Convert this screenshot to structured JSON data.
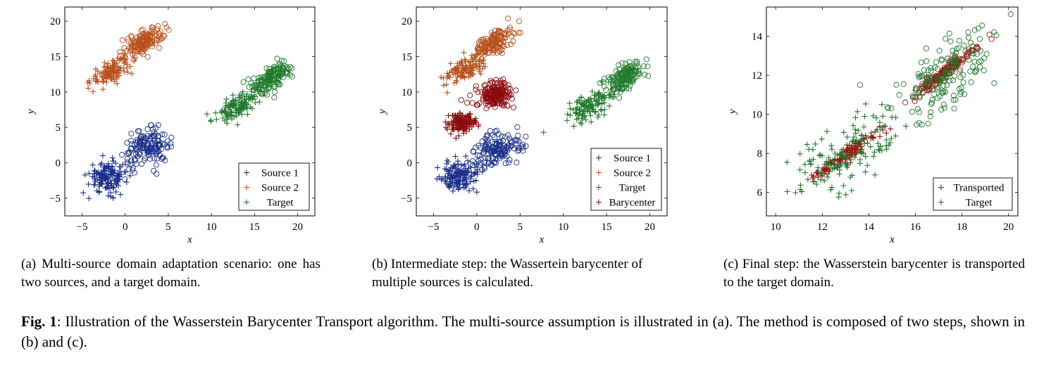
{
  "colors": {
    "source1": "#1a2f8a",
    "source2": "#b8501c",
    "target": "#1f7a2c",
    "barycenter": "#8b0a0a",
    "transported": "#9e1010"
  },
  "chart_data": [
    {
      "type": "scatter",
      "panel": "a",
      "xlabel": "x",
      "ylabel": "y",
      "xlim": [
        -7,
        22
      ],
      "ylim": [
        -7.5,
        22
      ],
      "xticks": [
        -5,
        0,
        5,
        10,
        15,
        20
      ],
      "yticks": [
        -5,
        0,
        5,
        10,
        15,
        20
      ],
      "legend_position": "bottom-right",
      "series": [
        {
          "name": "Source 1",
          "color": "#1a2f8a",
          "clusters": [
            {
              "marker": "plus",
              "cx": -2,
              "cy": -2,
              "sx": 1.1,
              "sy": 1.1,
              "rho": 0.0,
              "n": 150
            },
            {
              "marker": "circle",
              "cx": 2.5,
              "cy": 2,
              "sx": 1.3,
              "sy": 1.3,
              "rho": 0.3,
              "n": 150
            }
          ]
        },
        {
          "name": "Source 2",
          "color": "#b8501c",
          "clusters": [
            {
              "marker": "plus",
              "cx": -1.5,
              "cy": 13,
              "sx": 1.2,
              "sy": 1.0,
              "rho": 0.6,
              "n": 120
            },
            {
              "marker": "circle",
              "cx": 2,
              "cy": 17,
              "sx": 1.2,
              "sy": 1.0,
              "rho": 0.6,
              "n": 150
            }
          ]
        },
        {
          "name": "Target",
          "color": "#1f7a2c",
          "clusters": [
            {
              "marker": "plus",
              "cx": 13,
              "cy": 8,
              "sx": 1.2,
              "sy": 1.1,
              "rho": 0.6,
              "n": 120
            },
            {
              "marker": "circle",
              "cx": 17,
              "cy": 12,
              "sx": 1.1,
              "sy": 1.1,
              "rho": 0.6,
              "n": 150
            }
          ]
        }
      ]
    },
    {
      "type": "scatter",
      "panel": "b",
      "xlabel": "x",
      "ylabel": "y",
      "xlim": [
        -7,
        22
      ],
      "ylim": [
        -7.5,
        22
      ],
      "xticks": [
        -5,
        0,
        5,
        10,
        15,
        20
      ],
      "yticks": [
        -5,
        0,
        5,
        10,
        15,
        20
      ],
      "legend_position": "bottom-right",
      "series": [
        {
          "name": "Source 1",
          "color": "#1a2f8a",
          "clusters": [
            {
              "marker": "plus",
              "cx": -2,
              "cy": -2,
              "sx": 1.1,
              "sy": 1.1,
              "rho": 0.0,
              "n": 150
            },
            {
              "marker": "circle",
              "cx": 2.5,
              "cy": 2,
              "sx": 1.3,
              "sy": 1.3,
              "rho": 0.3,
              "n": 150
            }
          ]
        },
        {
          "name": "Source 2",
          "color": "#b8501c",
          "clusters": [
            {
              "marker": "plus",
              "cx": -1.5,
              "cy": 13,
              "sx": 1.2,
              "sy": 1.0,
              "rho": 0.6,
              "n": 120
            },
            {
              "marker": "circle",
              "cx": 2,
              "cy": 17,
              "sx": 1.2,
              "sy": 1.0,
              "rho": 0.6,
              "n": 150
            }
          ]
        },
        {
          "name": "Target",
          "color": "#1f7a2c",
          "clusters": [
            {
              "marker": "plus",
              "cx": 13,
              "cy": 8,
              "sx": 1.2,
              "sy": 1.1,
              "rho": 0.6,
              "n": 120
            },
            {
              "marker": "circle",
              "cx": 17,
              "cy": 12,
              "sx": 1.1,
              "sy": 1.1,
              "rho": 0.6,
              "n": 150
            }
          ]
        },
        {
          "name": "Barycenter",
          "color": "#8b0a0a",
          "clusters": [
            {
              "marker": "plus",
              "cx": -1.8,
              "cy": 5.5,
              "sx": 0.8,
              "sy": 0.7,
              "rho": 0.2,
              "n": 150
            },
            {
              "marker": "circle",
              "cx": 2.2,
              "cy": 9.6,
              "sx": 1.0,
              "sy": 0.9,
              "rho": 0.3,
              "n": 180
            }
          ]
        }
      ]
    },
    {
      "type": "scatter",
      "panel": "c",
      "xlabel": "x",
      "ylabel": "y",
      "xlim": [
        9.6,
        20.4
      ],
      "ylim": [
        4.8,
        15.5
      ],
      "xticks": [
        10,
        12,
        14,
        16,
        18,
        20
      ],
      "yticks": [
        6,
        8,
        10,
        12,
        14
      ],
      "legend_position": "bottom-right",
      "series": [
        {
          "name": "Transported",
          "color": "#9e1010",
          "clusters": [
            {
              "marker": "plus",
              "cx": 12.9,
              "cy": 7.8,
              "sx": 0.7,
              "sy": 0.6,
              "rho": 0.95,
              "n": 130
            },
            {
              "marker": "circle",
              "cx": 17.2,
              "cy": 12.1,
              "sx": 0.7,
              "sy": 0.65,
              "rho": 0.95,
              "n": 140
            }
          ]
        },
        {
          "name": "Target",
          "color": "#1f7a2c",
          "clusters": [
            {
              "marker": "plus",
              "cx": 13,
              "cy": 7.9,
              "sx": 1.2,
              "sy": 1.1,
              "rho": 0.6,
              "n": 150
            },
            {
              "marker": "circle",
              "cx": 17.2,
              "cy": 12.1,
              "sx": 1.1,
              "sy": 1.1,
              "rho": 0.6,
              "n": 160
            }
          ]
        }
      ]
    }
  ],
  "captions": {
    "a": "(a) Multi-source domain adaptation scenario: one has two sources, and a target domain.",
    "b": "(b) Intermediate step: the Wassertein barycenter of multiple sources is calculated.",
    "c": "(c) Final step: the Wasserstein barycenter is transported to the target domain.",
    "fig_label": "Fig. 1",
    "fig_text": ": Illustration of the Wasserstein Barycenter Transport algorithm. The multi-source assumption is illustrated in (a). The method is composed of two steps, shown in (b) and (c)."
  }
}
